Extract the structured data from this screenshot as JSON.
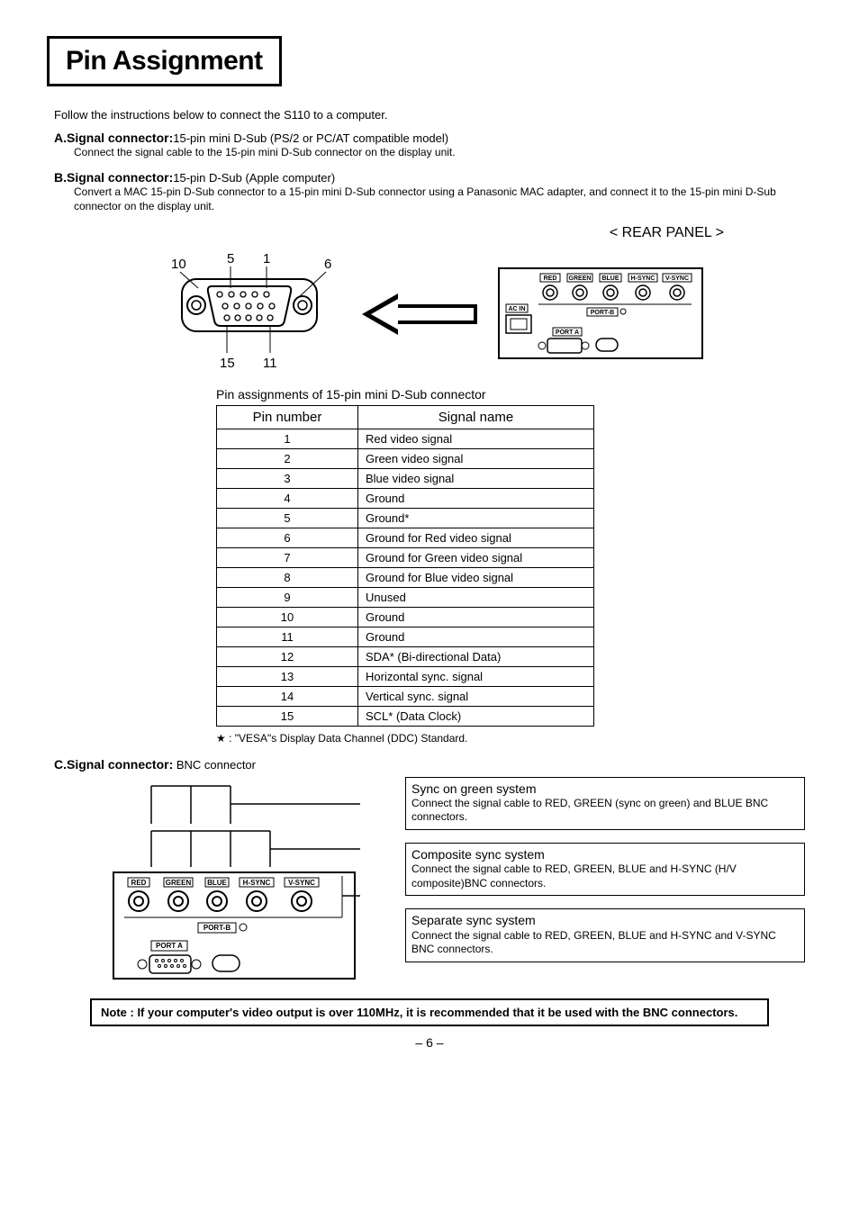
{
  "title": "Pin Assignment",
  "intro": "Follow the instructions below to connect the S110 to a computer.",
  "sectionA": {
    "label": "A.Signal connector:",
    "head": "15-pin mini D-Sub (PS/2 or PC/AT compatible model)",
    "body": "Connect the signal cable to the 15-pin mini D-Sub connector on the display unit."
  },
  "sectionB": {
    "label": "B.Signal connector:",
    "head": "15-pin D-Sub (Apple computer)",
    "body": "Convert a MAC 15-pin D-Sub connector to a 15-pin mini D-Sub connector using a Panasonic MAC adapter, and connect it to the 15-pin mini D-Sub connector on the display unit."
  },
  "rear_panel_label": "< REAR PANEL >",
  "dsub": {
    "label_10": "10",
    "label_5": "5",
    "label_1": "1",
    "label_6": "6",
    "label_15": "15",
    "label_11": "11"
  },
  "rear_panel": {
    "bnc_labels": [
      "RED",
      "GREEN",
      "BLUE",
      "H-SYNC",
      "V-SYNC"
    ],
    "ac_in": "AC IN",
    "port_b": "PORT-B",
    "port_a": "PORT A"
  },
  "table_caption": "Pin assignments of 15-pin mini D-Sub connector",
  "table_headers": {
    "pin": "Pin number",
    "signal": "Signal name"
  },
  "pins": [
    {
      "n": "1",
      "s": "Red video signal"
    },
    {
      "n": "2",
      "s": "Green video signal"
    },
    {
      "n": "3",
      "s": "Blue video signal"
    },
    {
      "n": "4",
      "s": "Ground"
    },
    {
      "n": "5",
      "s": "Ground*"
    },
    {
      "n": "6",
      "s": "Ground for Red video signal"
    },
    {
      "n": "7",
      "s": "Ground for Green video signal"
    },
    {
      "n": "8",
      "s": "Ground for Blue video signal"
    },
    {
      "n": "9",
      "s": "Unused"
    },
    {
      "n": "10",
      "s": "Ground"
    },
    {
      "n": "11",
      "s": "Ground"
    },
    {
      "n": "12",
      "s": "SDA* (Bi-directional Data)"
    },
    {
      "n": "13",
      "s": "Horizontal sync. signal"
    },
    {
      "n": "14",
      "s": "Vertical sync. signal"
    },
    {
      "n": "15",
      "s": "SCL* (Data Clock)"
    }
  ],
  "footnote": "★ : \"VESA\"s Display Data Channel (DDC) Standard.",
  "sectionC": {
    "label": "C.Signal connector:",
    "head": " BNC connector"
  },
  "bnc_systems": [
    {
      "title": "Sync on green system",
      "body": "Connect the signal cable to RED, GREEN (sync on green) and BLUE BNC connectors."
    },
    {
      "title": "Composite sync system",
      "body": "Connect the signal cable to RED, GREEN, BLUE and H-SYNC (H/V composite)BNC connectors."
    },
    {
      "title": "Separate sync system",
      "body": "Connect the signal cable to RED, GREEN, BLUE and H-SYNC and V-SYNC BNC connectors."
    }
  ],
  "note": "Note : If your computer's video output is over 110MHz, it is recommended that it be used with the BNC connectors.",
  "page_num": "– 6 –"
}
